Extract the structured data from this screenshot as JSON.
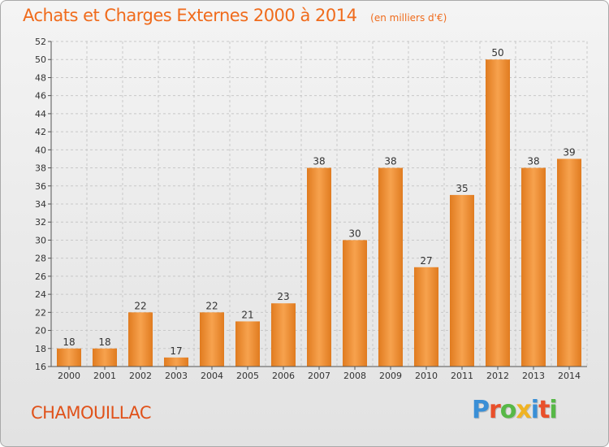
{
  "header": {
    "title": "Achats et Charges Externes 2000 à 2014",
    "unit": "(en milliers d'€)"
  },
  "footer": {
    "commune": "CHAMOUILLAC",
    "logo_text": "Proxiti"
  },
  "colors": {
    "bar_light": "#f7a24e",
    "bar_dark": "#e07b1f",
    "title": "#f06b1c",
    "logo": [
      "#3a8fd6",
      "#e94f2a",
      "#57b847",
      "#f0b323",
      "#3a8fd6",
      "#e94f2a",
      "#57b847"
    ]
  },
  "chart_data": {
    "type": "bar",
    "title": "Achats et Charges Externes 2000 à 2014",
    "xlabel": "",
    "ylabel": "",
    "categories": [
      "2000",
      "2001",
      "2002",
      "2003",
      "2004",
      "2005",
      "2006",
      "2007",
      "2008",
      "2009",
      "2010",
      "2011",
      "2012",
      "2013",
      "2014"
    ],
    "values": [
      18,
      18,
      22,
      17,
      22,
      21,
      23,
      38,
      30,
      38,
      27,
      35,
      50,
      38,
      39
    ],
    "ylim": [
      16,
      52
    ],
    "yticks": [
      16,
      18,
      20,
      22,
      24,
      26,
      28,
      30,
      32,
      34,
      36,
      38,
      40,
      42,
      44,
      46,
      48,
      50,
      52
    ],
    "grid": true,
    "legend": "none"
  }
}
